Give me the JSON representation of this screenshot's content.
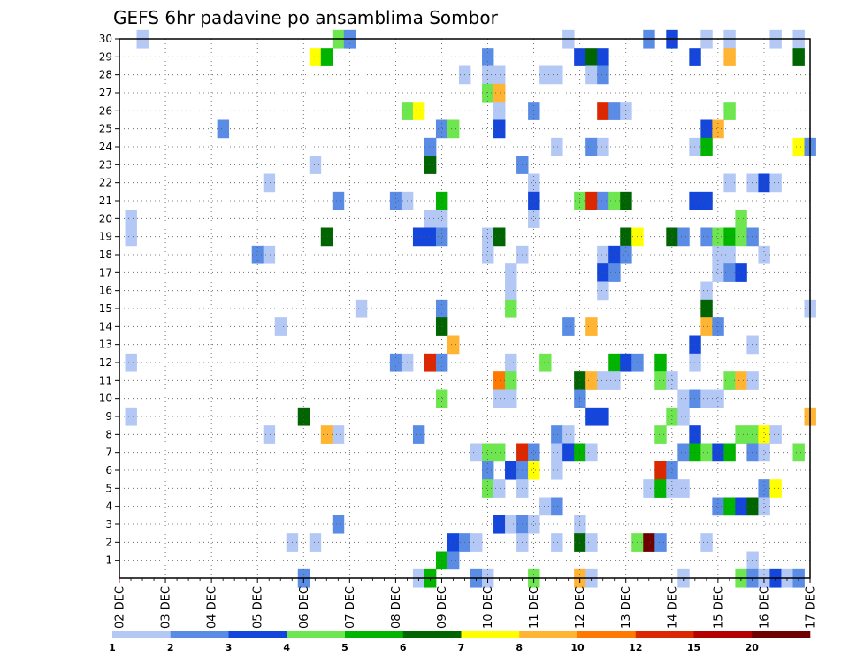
{
  "chart_data": {
    "type": "heatmap",
    "title": "GEFS 6hr padavine po ansamblima Sombor",
    "xlabel": "",
    "ylabel": "",
    "x_tick_labels": [
      "02 DEC",
      "03 DEC",
      "04 DEC",
      "05 DEC",
      "06 DEC",
      "07 DEC",
      "08 DEC",
      "09 DEC",
      "10 DEC",
      "11 DEC",
      "12 DEC",
      "13 DEC",
      "14 DEC",
      "15 DEC",
      "16 DEC",
      "17 DEC"
    ],
    "y_tick_labels": [
      "1",
      "2",
      "3",
      "4",
      "5",
      "6",
      "7",
      "8",
      "9",
      "10",
      "11",
      "12",
      "13",
      "14",
      "15",
      "16",
      "17",
      "18",
      "19",
      "20",
      "21",
      "22",
      "23",
      "24",
      "25",
      "26",
      "27",
      "28",
      "29",
      "30"
    ],
    "x_unit": "6-hour step from 02 DEC 00Z",
    "x_range": [
      0,
      60
    ],
    "y_range": [
      0,
      30
    ],
    "grid": true,
    "legend": {
      "position": "bottom",
      "boundaries": [
        "1",
        "2",
        "3",
        "4",
        "5",
        "6",
        "7",
        "8",
        "10",
        "12",
        "15",
        "20"
      ],
      "colors": [
        "#b4c8f5",
        "#5a8ce6",
        "#1446dc",
        "#6ee650",
        "#00b400",
        "#006400",
        "#ffff00",
        "#ffb432",
        "#ff7800",
        "#dc2800",
        "#b40000",
        "#6e0000"
      ]
    },
    "cells": [
      [
        2,
        30,
        0
      ],
      [
        19,
        30,
        3
      ],
      [
        20,
        30,
        1
      ],
      [
        39,
        30,
        0
      ],
      [
        46,
        30,
        1
      ],
      [
        48,
        30,
        2
      ],
      [
        51,
        30,
        0
      ],
      [
        53,
        30,
        0
      ],
      [
        57,
        30,
        0
      ],
      [
        59,
        30,
        0
      ],
      [
        17,
        29,
        6
      ],
      [
        18,
        29,
        4
      ],
      [
        32,
        29,
        1
      ],
      [
        40,
        29,
        2
      ],
      [
        41,
        29,
        5
      ],
      [
        42,
        29,
        2
      ],
      [
        50,
        29,
        2
      ],
      [
        53,
        29,
        7
      ],
      [
        59,
        29,
        5
      ],
      [
        30,
        28,
        0
      ],
      [
        32,
        28,
        0
      ],
      [
        33,
        28,
        0
      ],
      [
        37,
        28,
        0
      ],
      [
        38,
        28,
        0
      ],
      [
        41,
        28,
        0
      ],
      [
        42,
        28,
        1
      ],
      [
        32,
        27,
        3
      ],
      [
        33,
        27,
        7
      ],
      [
        25,
        26,
        3
      ],
      [
        26,
        26,
        6
      ],
      [
        33,
        26,
        0
      ],
      [
        36,
        26,
        1
      ],
      [
        42,
        26,
        9
      ],
      [
        43,
        26,
        1
      ],
      [
        44,
        26,
        0
      ],
      [
        53,
        26,
        3
      ],
      [
        9,
        25,
        1
      ],
      [
        28,
        25,
        1
      ],
      [
        29,
        25,
        3
      ],
      [
        33,
        25,
        2
      ],
      [
        51,
        25,
        2
      ],
      [
        52,
        25,
        7
      ],
      [
        27,
        24,
        1
      ],
      [
        38,
        24,
        0
      ],
      [
        41,
        24,
        1
      ],
      [
        42,
        24,
        0
      ],
      [
        50,
        24,
        0
      ],
      [
        51,
        24,
        4
      ],
      [
        59,
        24,
        6
      ],
      [
        60,
        24,
        1
      ],
      [
        17,
        23,
        0
      ],
      [
        27,
        23,
        5
      ],
      [
        35,
        23,
        1
      ],
      [
        13,
        22,
        0
      ],
      [
        36,
        22,
        0
      ],
      [
        53,
        22,
        0
      ],
      [
        55,
        22,
        0
      ],
      [
        56,
        22,
        2
      ],
      [
        57,
        22,
        0
      ],
      [
        19,
        21,
        1
      ],
      [
        24,
        21,
        1
      ],
      [
        25,
        21,
        0
      ],
      [
        28,
        21,
        4
      ],
      [
        36,
        21,
        2
      ],
      [
        40,
        21,
        3
      ],
      [
        41,
        21,
        9
      ],
      [
        42,
        21,
        1
      ],
      [
        43,
        21,
        3
      ],
      [
        44,
        21,
        5
      ],
      [
        50,
        21,
        2
      ],
      [
        51,
        21,
        2
      ],
      [
        1,
        20,
        0
      ],
      [
        27,
        20,
        0
      ],
      [
        28,
        20,
        0
      ],
      [
        36,
        20,
        0
      ],
      [
        54,
        20,
        3
      ],
      [
        1,
        19,
        0
      ],
      [
        18,
        19,
        5
      ],
      [
        26,
        19,
        2
      ],
      [
        27,
        19,
        2
      ],
      [
        28,
        19,
        1
      ],
      [
        32,
        19,
        0
      ],
      [
        33,
        19,
        5
      ],
      [
        44,
        19,
        5
      ],
      [
        45,
        19,
        6
      ],
      [
        48,
        19,
        5
      ],
      [
        49,
        19,
        1
      ],
      [
        51,
        19,
        1
      ],
      [
        52,
        19,
        3
      ],
      [
        53,
        19,
        4
      ],
      [
        54,
        19,
        3
      ],
      [
        55,
        19,
        1
      ],
      [
        12,
        18,
        1
      ],
      [
        13,
        18,
        0
      ],
      [
        32,
        18,
        0
      ],
      [
        35,
        18,
        0
      ],
      [
        42,
        18,
        0
      ],
      [
        43,
        18,
        2
      ],
      [
        44,
        18,
        1
      ],
      [
        52,
        18,
        0
      ],
      [
        53,
        18,
        0
      ],
      [
        56,
        18,
        0
      ],
      [
        34,
        17,
        0
      ],
      [
        42,
        17,
        2
      ],
      [
        43,
        17,
        1
      ],
      [
        52,
        17,
        0
      ],
      [
        53,
        17,
        1
      ],
      [
        54,
        17,
        2
      ],
      [
        34,
        16,
        0
      ],
      [
        42,
        16,
        0
      ],
      [
        51,
        16,
        0
      ],
      [
        21,
        15,
        0
      ],
      [
        28,
        15,
        1
      ],
      [
        34,
        15,
        3
      ],
      [
        51,
        15,
        5
      ],
      [
        60,
        15,
        0
      ],
      [
        14,
        14,
        0
      ],
      [
        28,
        14,
        5
      ],
      [
        39,
        14,
        1
      ],
      [
        41,
        14,
        7
      ],
      [
        51,
        14,
        7
      ],
      [
        52,
        14,
        1
      ],
      [
        29,
        13,
        7
      ],
      [
        50,
        13,
        2
      ],
      [
        55,
        13,
        0
      ],
      [
        1,
        12,
        0
      ],
      [
        24,
        12,
        1
      ],
      [
        25,
        12,
        0
      ],
      [
        27,
        12,
        9
      ],
      [
        28,
        12,
        1
      ],
      [
        34,
        12,
        0
      ],
      [
        37,
        12,
        3
      ],
      [
        43,
        12,
        4
      ],
      [
        44,
        12,
        2
      ],
      [
        45,
        12,
        1
      ],
      [
        47,
        12,
        4
      ],
      [
        50,
        12,
        0
      ],
      [
        33,
        11,
        8
      ],
      [
        34,
        11,
        3
      ],
      [
        40,
        11,
        5
      ],
      [
        41,
        11,
        7
      ],
      [
        42,
        11,
        0
      ],
      [
        43,
        11,
        0
      ],
      [
        47,
        11,
        3
      ],
      [
        48,
        11,
        0
      ],
      [
        53,
        11,
        3
      ],
      [
        54,
        11,
        7
      ],
      [
        55,
        11,
        0
      ],
      [
        28,
        10,
        3
      ],
      [
        33,
        10,
        0
      ],
      [
        34,
        10,
        0
      ],
      [
        40,
        10,
        1
      ],
      [
        49,
        10,
        0
      ],
      [
        50,
        10,
        1
      ],
      [
        51,
        10,
        0
      ],
      [
        52,
        10,
        0
      ],
      [
        1,
        9,
        0
      ],
      [
        16,
        9,
        5
      ],
      [
        41,
        9,
        2
      ],
      [
        42,
        9,
        2
      ],
      [
        48,
        9,
        3
      ],
      [
        49,
        9,
        0
      ],
      [
        60,
        9,
        7
      ],
      [
        13,
        8,
        0
      ],
      [
        18,
        8,
        7
      ],
      [
        19,
        8,
        0
      ],
      [
        26,
        8,
        1
      ],
      [
        38,
        8,
        1
      ],
      [
        39,
        8,
        0
      ],
      [
        47,
        8,
        3
      ],
      [
        50,
        8,
        2
      ],
      [
        54,
        8,
        3
      ],
      [
        55,
        8,
        3
      ],
      [
        56,
        8,
        6
      ],
      [
        57,
        8,
        0
      ],
      [
        31,
        7,
        0
      ],
      [
        32,
        7,
        3
      ],
      [
        33,
        7,
        3
      ],
      [
        35,
        7,
        9
      ],
      [
        36,
        7,
        1
      ],
      [
        38,
        7,
        0
      ],
      [
        39,
        7,
        2
      ],
      [
        40,
        7,
        4
      ],
      [
        41,
        7,
        0
      ],
      [
        49,
        7,
        1
      ],
      [
        50,
        7,
        4
      ],
      [
        51,
        7,
        3
      ],
      [
        52,
        7,
        2
      ],
      [
        53,
        7,
        4
      ],
      [
        55,
        7,
        1
      ],
      [
        56,
        7,
        0
      ],
      [
        59,
        7,
        3
      ],
      [
        32,
        6,
        1
      ],
      [
        34,
        6,
        2
      ],
      [
        35,
        6,
        1
      ],
      [
        36,
        6,
        6
      ],
      [
        38,
        6,
        0
      ],
      [
        47,
        6,
        9
      ],
      [
        48,
        6,
        1
      ],
      [
        32,
        5,
        3
      ],
      [
        33,
        5,
        0
      ],
      [
        35,
        5,
        0
      ],
      [
        46,
        5,
        0
      ],
      [
        47,
        5,
        4
      ],
      [
        48,
        5,
        0
      ],
      [
        49,
        5,
        0
      ],
      [
        56,
        5,
        1
      ],
      [
        57,
        5,
        6
      ],
      [
        37,
        4,
        0
      ],
      [
        38,
        4,
        1
      ],
      [
        52,
        4,
        1
      ],
      [
        53,
        4,
        4
      ],
      [
        54,
        4,
        2
      ],
      [
        55,
        4,
        5
      ],
      [
        56,
        4,
        0
      ],
      [
        19,
        3,
        1
      ],
      [
        33,
        3,
        2
      ],
      [
        34,
        3,
        0
      ],
      [
        35,
        3,
        1
      ],
      [
        36,
        3,
        0
      ],
      [
        40,
        3,
        0
      ],
      [
        15,
        2,
        0
      ],
      [
        17,
        2,
        0
      ],
      [
        29,
        2,
        2
      ],
      [
        30,
        2,
        1
      ],
      [
        31,
        2,
        0
      ],
      [
        35,
        2,
        0
      ],
      [
        38,
        2,
        0
      ],
      [
        40,
        2,
        5
      ],
      [
        41,
        2,
        0
      ],
      [
        45,
        2,
        3
      ],
      [
        46,
        2,
        11
      ],
      [
        47,
        2,
        1
      ],
      [
        51,
        2,
        0
      ],
      [
        28,
        1,
        4
      ],
      [
        29,
        1,
        1
      ],
      [
        55,
        1,
        0
      ],
      [
        16,
        0,
        1
      ],
      [
        26,
        0,
        0
      ],
      [
        27,
        0,
        4
      ],
      [
        31,
        0,
        1
      ],
      [
        32,
        0,
        0
      ],
      [
        36,
        0,
        3
      ],
      [
        40,
        0,
        7
      ],
      [
        41,
        0,
        0
      ],
      [
        49,
        0,
        0
      ],
      [
        54,
        0,
        3
      ],
      [
        55,
        0,
        1
      ],
      [
        56,
        0,
        0
      ],
      [
        57,
        0,
        2
      ],
      [
        58,
        0,
        0
      ],
      [
        59,
        0,
        1
      ]
    ]
  }
}
